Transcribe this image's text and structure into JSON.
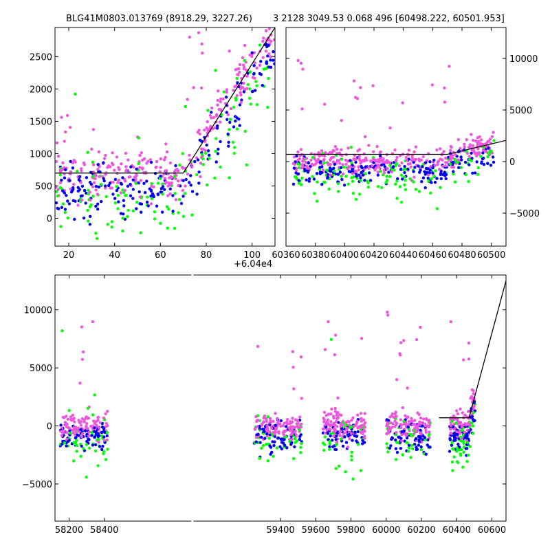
{
  "figure": {
    "title_left": "BLG41M0803.013769 (8918.29, 3227.26)",
    "title_right": "3 2128 3049.53 0.068 496 [60498.222, 60501.953]"
  },
  "colors": {
    "green": "#00ff00",
    "blue": "#0000ee",
    "magenta": "#ee55dd",
    "model": "#000000"
  },
  "chart_data": [
    {
      "type": "scatter",
      "panel": "top-left zoom",
      "x_offset_label": "+6.04e4",
      "xlim": [
        60414,
        60510
      ],
      "ylim": [
        -430,
        2950
      ],
      "xticks": [
        {
          "v": 60420,
          "label": "20"
        },
        {
          "v": 60440,
          "label": "40"
        },
        {
          "v": 60460,
          "label": "60"
        },
        {
          "v": 60480,
          "label": "80"
        },
        {
          "v": 60500,
          "label": "100"
        }
      ],
      "yticks": [
        {
          "v": 0,
          "label": "0"
        },
        {
          "v": 500,
          "label": "500"
        },
        {
          "v": 1000,
          "label": "1000"
        },
        {
          "v": 1500,
          "label": "1500"
        },
        {
          "v": 2000,
          "label": "2000"
        },
        {
          "v": 2500,
          "label": "2500"
        }
      ],
      "model_line": [
        [
          60414,
          700
        ],
        [
          60470,
          700
        ],
        [
          60510,
          2950
        ]
      ]
    },
    {
      "type": "scatter",
      "panel": "top-right",
      "xlim": [
        60360,
        60510
      ],
      "ylim": [
        -8200,
        13000
      ],
      "xticks": [
        {
          "v": 60360,
          "label": "60360"
        },
        {
          "v": 60380,
          "label": "60380"
        },
        {
          "v": 60400,
          "label": "60400"
        },
        {
          "v": 60420,
          "label": "60420"
        },
        {
          "v": 60440,
          "label": "60440"
        },
        {
          "v": 60460,
          "label": "60460"
        },
        {
          "v": 60480,
          "label": "60480"
        },
        {
          "v": 60500,
          "label": "60500"
        }
      ],
      "yticks": [
        {
          "v": -5000,
          "label": "−5000"
        },
        {
          "v": 0,
          "label": "0"
        },
        {
          "v": 5000,
          "label": "5000"
        },
        {
          "v": 10000,
          "label": "10000"
        }
      ],
      "model_line": [
        [
          60360,
          700
        ],
        [
          60470,
          700
        ],
        [
          60550,
          3400
        ]
      ]
    },
    {
      "type": "scatter",
      "panel": "bottom full light curve",
      "xlim": [
        58120,
        60680
      ],
      "ylim": [
        -8200,
        13000
      ],
      "xticks": [
        {
          "v": 58200,
          "label": "58200"
        },
        {
          "v": 58400,
          "label": "58400"
        },
        {
          "v": 59400,
          "label": "59400"
        },
        {
          "v": 59600,
          "label": "59600"
        },
        {
          "v": 59800,
          "label": "59800"
        },
        {
          "v": 60000,
          "label": "60000"
        },
        {
          "v": 60200,
          "label": "60200"
        },
        {
          "v": 60400,
          "label": "60400"
        },
        {
          "v": 60600,
          "label": "60600"
        }
      ],
      "yticks": [
        {
          "v": -5000,
          "label": "−5000"
        },
        {
          "v": 0,
          "label": "0"
        },
        {
          "v": 5000,
          "label": "5000"
        },
        {
          "v": 10000,
          "label": "10000"
        }
      ],
      "model_line": [
        [
          60300,
          700
        ],
        [
          60470,
          700
        ],
        [
          60680,
          12500
        ]
      ],
      "seasons": [
        [
          58150,
          58420
        ],
        [
          59250,
          59520
        ],
        [
          59640,
          59880
        ],
        [
          60000,
          60250
        ],
        [
          60360,
          60505
        ]
      ]
    }
  ]
}
